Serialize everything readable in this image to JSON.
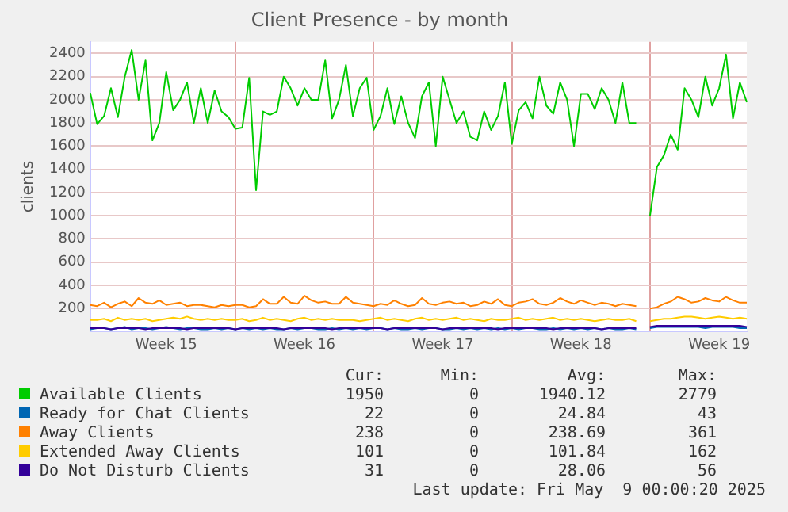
{
  "chart_data": {
    "type": "line",
    "title": "Client Presence - by month",
    "ylabel": "clients",
    "categories": [
      null,
      null,
      null,
      null,
      null,
      null,
      null,
      null,
      null,
      null,
      null,
      "Week 15",
      null,
      null,
      null,
      null,
      null,
      null,
      null,
      null,
      null,
      null,
      null,
      null,
      null,
      null,
      null,
      null,
      null,
      null,
      null,
      "Week 16",
      null,
      null,
      null,
      null,
      null,
      null,
      null,
      null,
      null,
      null,
      null,
      null,
      null,
      null,
      null,
      null,
      null,
      null,
      null,
      "Week 17",
      null,
      null,
      null,
      null,
      null,
      null,
      null,
      null,
      null,
      null,
      null,
      null,
      null,
      null,
      null,
      null,
      null,
      null,
      null,
      "Week 18",
      null,
      null,
      null,
      null,
      null,
      null,
      null,
      null,
      null,
      null,
      null,
      null,
      null,
      null,
      null,
      null,
      null,
      null,
      null,
      "Week 19",
      null,
      null,
      null,
      null
    ],
    "series": [
      {
        "name": "Available Clients",
        "color": "#00cc00",
        "values": [
          2060,
          1790,
          1860,
          2100,
          1850,
          2200,
          2430,
          2000,
          2340,
          1650,
          1800,
          2240,
          1910,
          2000,
          2150,
          1800,
          2100,
          1800,
          2080,
          1900,
          1850,
          1750,
          1760,
          2190,
          1220,
          1900,
          1870,
          1900,
          2200,
          2100,
          1950,
          2100,
          2000,
          2000,
          2340,
          1840,
          2000,
          2300,
          1860,
          2100,
          2190,
          1740,
          1860,
          2100,
          1790,
          2030,
          1800,
          1670,
          2030,
          2150,
          1600,
          2200,
          2000,
          1800,
          1900,
          1680,
          1650,
          1900,
          1740,
          1860,
          2150,
          1620,
          1910,
          1980,
          1840,
          2200,
          1950,
          1880,
          2150,
          2000,
          1600,
          2050,
          2050,
          1920,
          2100,
          2000,
          1800,
          2150,
          1800,
          1800,
          null,
          1000,
          1420,
          1520,
          1700,
          1570,
          2100,
          2000,
          1850,
          2200,
          1950,
          2100,
          2390,
          1840,
          2150,
          1980
        ]
      },
      {
        "name": "Ready for Chat Clients",
        "color": "#0066b3",
        "values": [
          20,
          30,
          30,
          20,
          30,
          40,
          20,
          30,
          30,
          20,
          30,
          40,
          30,
          20,
          30,
          30,
          20,
          20,
          30,
          20,
          30,
          20,
          30,
          20,
          30,
          20,
          30,
          20,
          20,
          30,
          20,
          30,
          30,
          20,
          20,
          30,
          20,
          30,
          20,
          30,
          20,
          30,
          30,
          20,
          30,
          20,
          20,
          30,
          20,
          30,
          30,
          20,
          20,
          30,
          20,
          30,
          20,
          30,
          20,
          30,
          20,
          30,
          20,
          30,
          30,
          20,
          20,
          30,
          20,
          30,
          20,
          30,
          20,
          30,
          20,
          30,
          20,
          20,
          30,
          20,
          null,
          30,
          40,
          40,
          40,
          40,
          40,
          40,
          40,
          30,
          40,
          40,
          40,
          40,
          30,
          30
        ]
      },
      {
        "name": "Away Clients",
        "color": "#ff8000",
        "values": [
          230,
          220,
          250,
          210,
          240,
          260,
          220,
          290,
          250,
          240,
          270,
          230,
          240,
          250,
          220,
          230,
          230,
          220,
          210,
          230,
          220,
          230,
          230,
          210,
          220,
          280,
          240,
          240,
          300,
          250,
          240,
          310,
          270,
          250,
          260,
          240,
          240,
          300,
          250,
          240,
          230,
          220,
          240,
          230,
          270,
          240,
          220,
          230,
          290,
          240,
          230,
          250,
          260,
          240,
          250,
          220,
          230,
          260,
          240,
          280,
          230,
          220,
          250,
          260,
          280,
          240,
          230,
          250,
          290,
          260,
          240,
          270,
          250,
          230,
          250,
          240,
          220,
          240,
          230,
          220,
          null,
          200,
          210,
          240,
          260,
          300,
          280,
          250,
          260,
          290,
          270,
          260,
          300,
          270,
          250,
          250
        ]
      },
      {
        "name": "Extended Away Clients",
        "color": "#ffcc00",
        "values": [
          100,
          100,
          110,
          90,
          120,
          100,
          110,
          100,
          110,
          90,
          100,
          110,
          120,
          110,
          130,
          110,
          100,
          110,
          100,
          110,
          100,
          100,
          110,
          90,
          100,
          120,
          100,
          110,
          100,
          90,
          110,
          120,
          100,
          110,
          100,
          110,
          100,
          100,
          100,
          90,
          100,
          110,
          120,
          100,
          110,
          100,
          90,
          110,
          120,
          100,
          110,
          100,
          110,
          120,
          100,
          110,
          100,
          90,
          110,
          100,
          100,
          110,
          120,
          100,
          110,
          100,
          110,
          120,
          100,
          110,
          100,
          110,
          100,
          90,
          100,
          110,
          100,
          100,
          110,
          90,
          null,
          90,
          100,
          110,
          110,
          120,
          130,
          130,
          120,
          110,
          120,
          130,
          120,
          110,
          120,
          110
        ]
      },
      {
        "name": "Do Not Disturb Clients",
        "color": "#330099",
        "values": [
          30,
          30,
          30,
          20,
          30,
          30,
          30,
          30,
          20,
          30,
          30,
          30,
          30,
          30,
          20,
          30,
          30,
          30,
          30,
          30,
          30,
          20,
          30,
          30,
          30,
          30,
          30,
          30,
          20,
          30,
          30,
          30,
          30,
          30,
          30,
          20,
          30,
          30,
          30,
          30,
          30,
          30,
          30,
          20,
          30,
          30,
          30,
          30,
          30,
          30,
          30,
          20,
          30,
          30,
          30,
          30,
          30,
          30,
          30,
          20,
          30,
          30,
          30,
          30,
          30,
          30,
          30,
          20,
          30,
          30,
          30,
          30,
          30,
          30,
          20,
          30,
          30,
          30,
          30,
          30,
          null,
          40,
          50,
          50,
          50,
          50,
          50,
          50,
          50,
          50,
          50,
          50,
          50,
          50,
          50,
          40
        ]
      }
    ],
    "ylim": [
      0,
      2500
    ],
    "yticks": [
      200,
      400,
      600,
      800,
      1000,
      1200,
      1400,
      1600,
      1800,
      2000,
      2200,
      2400
    ],
    "grid": true,
    "legend": "bottom",
    "marker": "none",
    "line_style": "solid",
    "annotations": [
      "Cur:",
      "Min:",
      "Avg:",
      "Max:",
      "1950",
      "0",
      "1940.12",
      "2779",
      "22",
      "0",
      "24.84",
      "43",
      "238",
      "0",
      "238.69",
      "361",
      "101",
      "0",
      "101.84",
      "162",
      "31",
      "0",
      "28.06",
      "56",
      "Last update: Fri May  9 00:00:20 2025"
    ]
  }
}
